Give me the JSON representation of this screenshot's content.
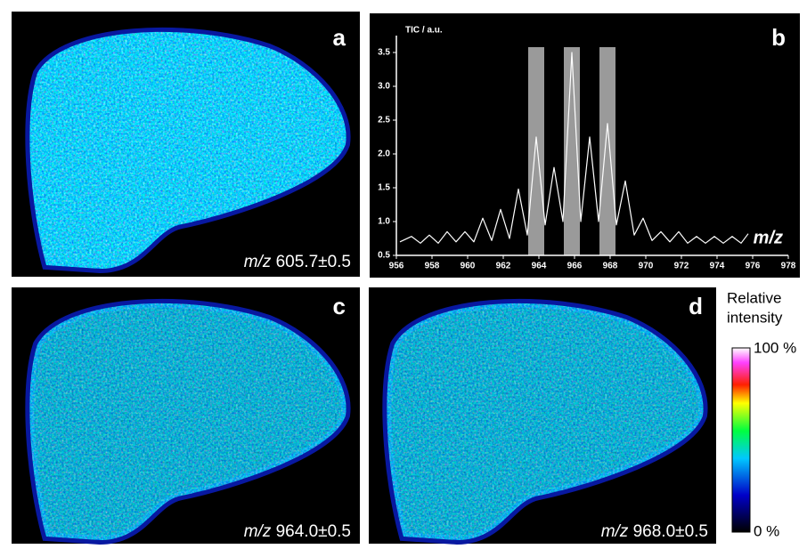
{
  "panels": [
    {
      "label": "a",
      "caption_prefix": "m/z",
      "caption_value": "605.7±0.5"
    },
    {
      "label": "b"
    },
    {
      "label": "c",
      "caption_prefix": "m/z",
      "caption_value": "964.0±0.5"
    },
    {
      "label": "d",
      "caption_prefix": "m/z",
      "caption_value": "968.0±0.5"
    }
  ],
  "chart_data": {
    "type": "line",
    "y_label": "TIC / a.u.",
    "x_label": "m/z",
    "color": "#ffffff",
    "x": [
      956.2,
      956.85,
      957.35,
      957.85,
      958.35,
      958.85,
      959.35,
      959.85,
      960.35,
      960.85,
      961.35,
      961.85,
      962.35,
      962.85,
      963.35,
      963.85,
      964.35,
      964.85,
      965.35,
      965.85,
      966.35,
      966.85,
      967.35,
      967.85,
      968.35,
      968.85,
      969.35,
      969.85,
      970.35,
      970.85,
      971.35,
      971.85,
      972.35,
      972.85,
      973.35,
      973.85,
      974.35,
      974.85,
      975.35,
      975.75
    ],
    "values": [
      0.7,
      0.78,
      0.68,
      0.8,
      0.68,
      0.85,
      0.7,
      0.85,
      0.7,
      1.05,
      0.72,
      1.18,
      0.75,
      1.48,
      0.8,
      2.25,
      0.95,
      1.8,
      1.0,
      3.5,
      1.0,
      2.25,
      1.0,
      2.45,
      0.95,
      1.6,
      0.8,
      1.05,
      0.72,
      0.85,
      0.7,
      0.85,
      0.68,
      0.78,
      0.68,
      0.78,
      0.68,
      0.78,
      0.68,
      0.82
    ],
    "xlim": [
      956,
      978
    ],
    "xticks": [
      956,
      958,
      960,
      962,
      964,
      966,
      968,
      970,
      972,
      974,
      976,
      978
    ],
    "ylim": [
      0.5,
      3.75
    ],
    "yticks": [
      0.5,
      {
        "value": 1,
        "label": "1.0"
      },
      1.5,
      {
        "value": 2,
        "label": "2.0"
      },
      2.5,
      {
        "value": 3,
        "label": "3.0"
      },
      3.5
    ],
    "highlights": [
      [
        963.4,
        964.3
      ],
      [
        965.4,
        966.3
      ],
      [
        967.4,
        968.3
      ]
    ],
    "highlight_color": "#9a9a9a"
  },
  "colorbar": {
    "title_lines": [
      "Relative",
      "intensity"
    ],
    "max_label": "100 %",
    "min_label": "0 %"
  }
}
